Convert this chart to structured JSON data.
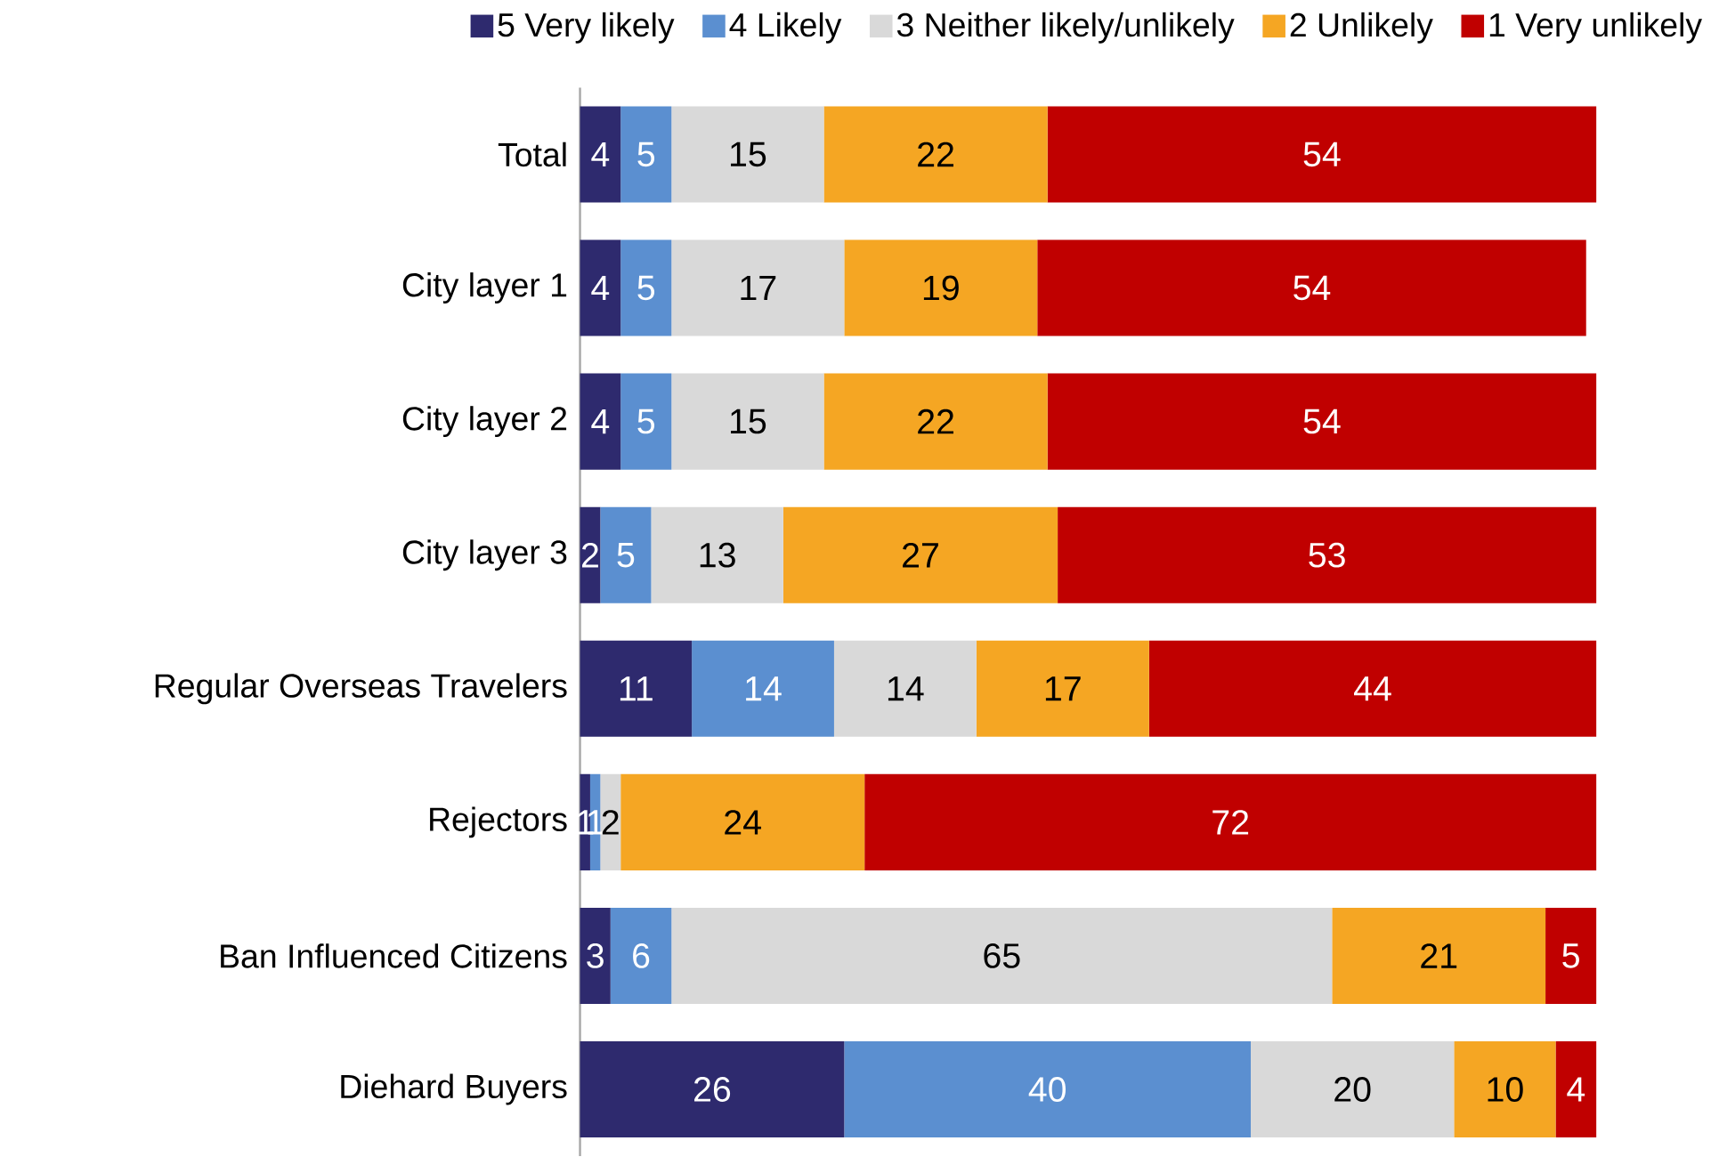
{
  "chart_data": {
    "type": "bar",
    "orientation": "horizontal",
    "stacked": true,
    "data_labels": true,
    "legend": "top",
    "categories": [
      "Total",
      "City layer 1",
      "City layer 2",
      "City layer 3",
      "Regular Overseas Travelers",
      "Rejectors",
      "Ban Influenced Citizens",
      "Diehard Buyers"
    ],
    "series": [
      {
        "name": "5 Very likely",
        "color": "#2e2a6e",
        "values": [
          4,
          4,
          4,
          2,
          11,
          1,
          3,
          26
        ]
      },
      {
        "name": "4 Likely",
        "color": "#5b8fd0",
        "values": [
          5,
          5,
          5,
          5,
          14,
          1,
          6,
          40
        ]
      },
      {
        "name": "3 Neither likely/unlikely",
        "color": "#d9d9d9",
        "values": [
          15,
          17,
          15,
          13,
          14,
          2,
          65,
          20
        ]
      },
      {
        "name": "2 Unlikely",
        "color": "#f5a623",
        "values": [
          22,
          19,
          22,
          27,
          17,
          24,
          21,
          10
        ]
      },
      {
        "name": "1 Very unlikely",
        "color": "#c00000",
        "values": [
          54,
          54,
          54,
          53,
          44,
          72,
          5,
          4
        ]
      }
    ]
  }
}
